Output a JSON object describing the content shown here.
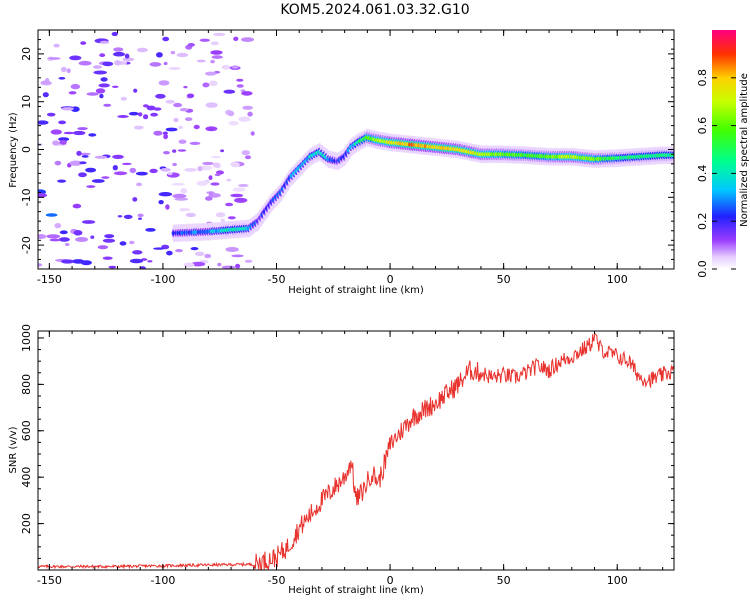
{
  "title": "KOM5.2024.061.03.32.G10",
  "colors": {
    "snr_line": "#e8322e",
    "axis": "#000000"
  },
  "chart_data": [
    {
      "type": "heatmap",
      "xlabel": "Height of straight line (km)",
      "ylabel": "Frequency (Hz)",
      "xlim": [
        -155,
        125
      ],
      "ylim": [
        -25,
        25
      ],
      "x_ticks": [
        -150,
        -100,
        -50,
        0,
        50,
        100
      ],
      "y_ticks": [
        -20,
        -10,
        0,
        10,
        20
      ],
      "colorbar": {
        "label": "Normalized spectral amplitude",
        "range": [
          0,
          1
        ],
        "ticks": [
          "0.0",
          "0.2",
          "0.4",
          "0.6",
          "0.8"
        ],
        "tick_values": [
          0.0,
          0.2,
          0.4,
          0.6,
          0.8
        ]
      },
      "ridge": {
        "x": [
          -95,
          -80,
          -70,
          -62,
          -58,
          -55,
          -52,
          -48,
          -44,
          -40,
          -35,
          -31,
          -27,
          -23,
          -20,
          -17,
          -14,
          -10,
          -6,
          0,
          10,
          20,
          30,
          40,
          50,
          60,
          70,
          80,
          90,
          100,
          110,
          120,
          125
        ],
        "y": [
          -17.5,
          -17.2,
          -16.8,
          -16.5,
          -15,
          -13,
          -11,
          -9,
          -6,
          -4,
          -1.5,
          -0.5,
          -2,
          -2.5,
          -1.5,
          0.5,
          1.5,
          2.5,
          2,
          1.5,
          1,
          0.5,
          0,
          -1,
          -1,
          -1.2,
          -1.5,
          -1.5,
          -2,
          -1.8,
          -1.5,
          -1.2,
          -1.2
        ],
        "amplitude": [
          0.22,
          0.3,
          0.4,
          0.35,
          0.18,
          0.2,
          0.22,
          0.25,
          0.28,
          0.3,
          0.35,
          0.4,
          0.3,
          0.22,
          0.25,
          0.3,
          0.45,
          0.55,
          0.65,
          0.75,
          0.85,
          0.8,
          0.75,
          0.7,
          0.6,
          0.55,
          0.6,
          0.7,
          0.6,
          0.5,
          0.45,
          0.5,
          0.45
        ]
      },
      "noise_region": {
        "x_range": [
          -155,
          -95
        ],
        "amplitude_range": [
          0.05,
          0.2
        ]
      }
    },
    {
      "type": "line",
      "xlabel": "Height of straight line (km)",
      "ylabel": "SNR (v/v)",
      "xlim": [
        -155,
        125
      ],
      "ylim": [
        0,
        1030
      ],
      "x_ticks": [
        -150,
        -100,
        -50,
        0,
        50,
        100
      ],
      "y_ticks": [
        200,
        400,
        600,
        800,
        1000
      ],
      "envelope": {
        "x": [
          -155,
          -120,
          -90,
          -60,
          -55,
          -50,
          -45,
          -40,
          -35,
          -30,
          -25,
          -20,
          -17,
          -15,
          -12,
          -8,
          -5,
          -2,
          0,
          5,
          10,
          20,
          30,
          35,
          40,
          45,
          50,
          55,
          60,
          65,
          70,
          75,
          80,
          85,
          88,
          90,
          92,
          95,
          100,
          105,
          110,
          115,
          120,
          125
        ],
        "y": [
          15,
          15,
          20,
          25,
          40,
          55,
          100,
          180,
          240,
          300,
          350,
          400,
          470,
          300,
          340,
          420,
          380,
          470,
          540,
          600,
          660,
          720,
          800,
          860,
          850,
          830,
          840,
          830,
          850,
          880,
          860,
          900,
          920,
          950,
          970,
          1010,
          960,
          940,
          920,
          900,
          830,
          820,
          840,
          860
        ]
      }
    }
  ]
}
